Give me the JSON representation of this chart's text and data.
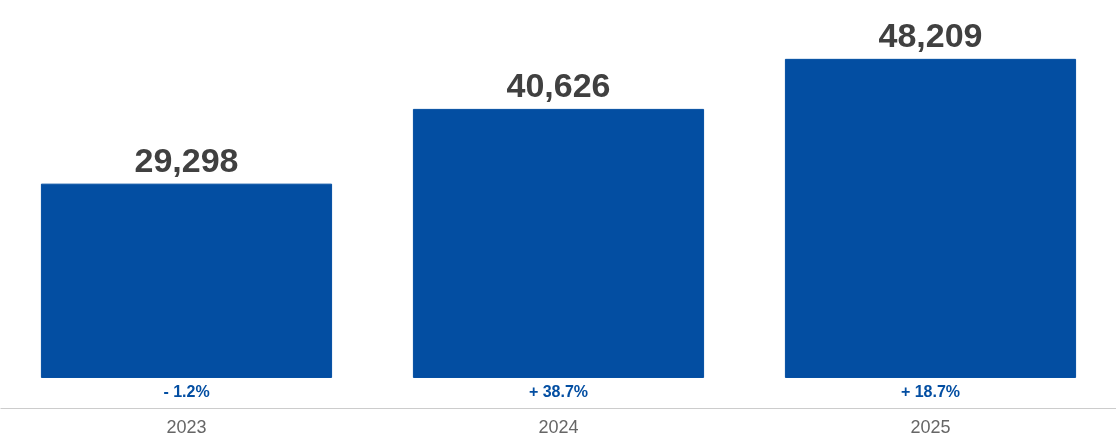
{
  "chart_data": {
    "type": "bar",
    "categories": [
      "2023",
      "2024",
      "2025"
    ],
    "values": [
      29298,
      40626,
      48209
    ],
    "color": "#034ea2",
    "value_labels": [
      "29,298",
      "40,626",
      "48,209"
    ],
    "grid": false,
    "annotations": [
      "- 1.2%",
      "+ 38.7%",
      "+ 18.7%"
    ]
  }
}
